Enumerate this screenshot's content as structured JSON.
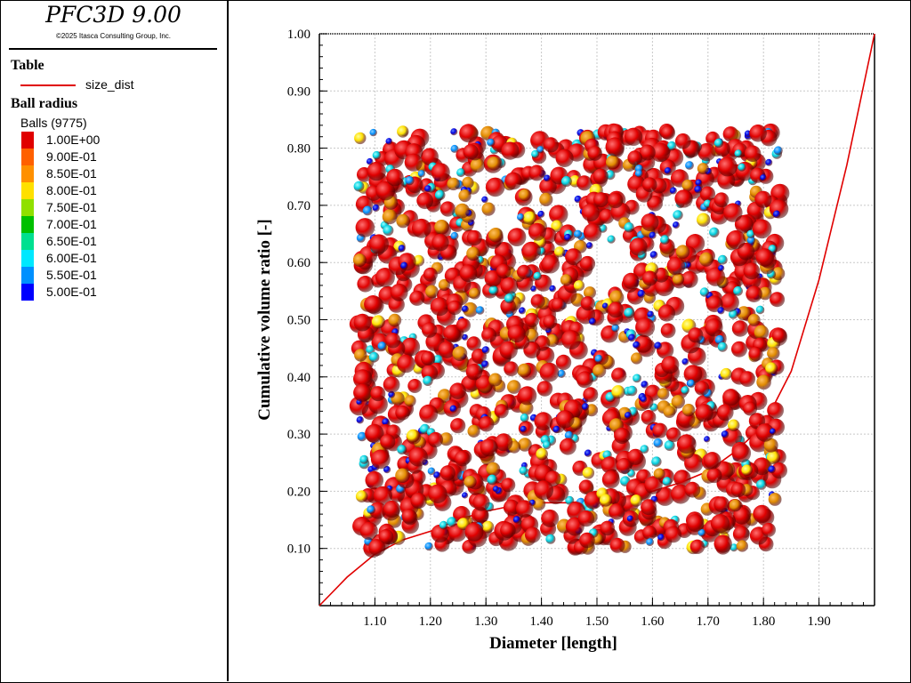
{
  "app": {
    "title": "PFC3D 9.00",
    "copyright": "©2025 Itasca Consulting Group, Inc."
  },
  "legend": {
    "table_section": "Table",
    "table_entry": "size_dist",
    "table_line_color": "#e00000",
    "ball_section": "Ball radius",
    "ball_count": "Balls (9775)",
    "scale": [
      {
        "label": "1.00E+00",
        "color": "#e00000"
      },
      {
        "label": "9.00E-01",
        "color": "#ff6000"
      },
      {
        "label": "8.50E-01",
        "color": "#ff9000"
      },
      {
        "label": "8.00E-01",
        "color": "#ffe000"
      },
      {
        "label": "7.50E-01",
        "color": "#90e000"
      },
      {
        "label": "7.00E-01",
        "color": "#00c000"
      },
      {
        "label": "6.50E-01",
        "color": "#00e090"
      },
      {
        "label": "6.00E-01",
        "color": "#00e8ff"
      },
      {
        "label": "5.50E-01",
        "color": "#0090ff"
      },
      {
        "label": "5.00E-01",
        "color": "#0000ff"
      }
    ]
  },
  "chart_data": {
    "type": "line",
    "xlabel": "Diameter [length]",
    "ylabel": "Cumulative volume ratio [-]",
    "xlim": [
      1.0,
      2.0
    ],
    "ylim": [
      0.0,
      1.0
    ],
    "xticks": [
      "1.10",
      "1.20",
      "1.30",
      "1.40",
      "1.50",
      "1.60",
      "1.70",
      "1.80",
      "1.90"
    ],
    "yticks": [
      "0.10",
      "0.20",
      "0.30",
      "0.40",
      "0.50",
      "0.60",
      "0.70",
      "0.80",
      "0.90",
      "1.00"
    ],
    "grid": true,
    "series": [
      {
        "name": "size_dist",
        "color": "#e00000",
        "x": [
          1.0,
          1.05,
          1.1,
          1.15,
          1.2,
          1.25,
          1.3,
          1.35,
          1.4,
          1.45,
          1.5,
          1.55,
          1.6,
          1.65,
          1.7,
          1.75,
          1.8,
          1.85,
          1.9,
          1.95,
          2.0
        ],
        "y": [
          0.0,
          0.05,
          0.09,
          0.115,
          0.13,
          0.15,
          0.165,
          0.175,
          0.18,
          0.18,
          0.185,
          0.19,
          0.2,
          0.215,
          0.235,
          0.27,
          0.315,
          0.41,
          0.57,
          0.77,
          1.0
        ]
      }
    ],
    "overlay": {
      "kind": "3D ball assembly (spheres colored by radius)",
      "x_range": [
        1.07,
        1.83
      ],
      "y_range": [
        0.1,
        0.83
      ]
    }
  }
}
